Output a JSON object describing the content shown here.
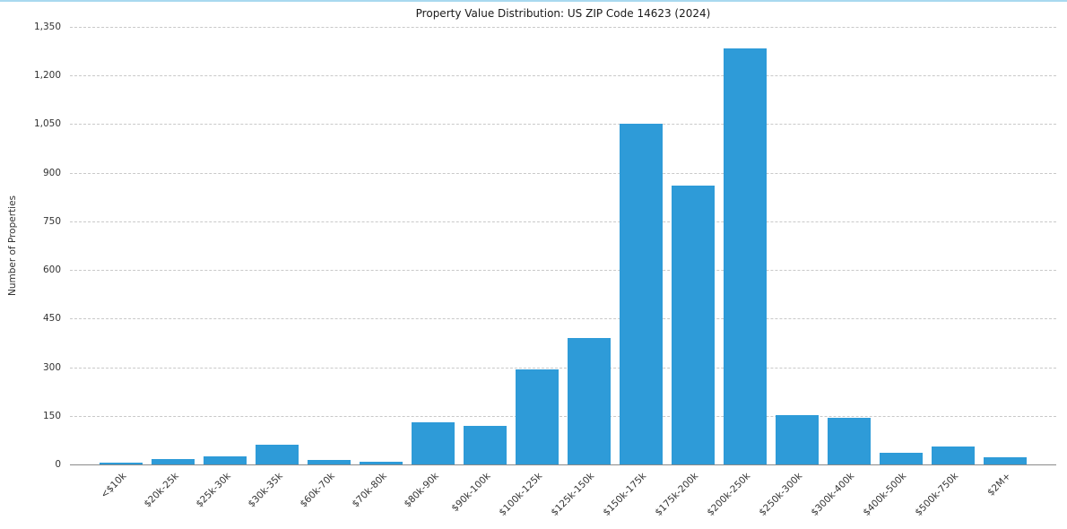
{
  "chart_data": {
    "type": "bar",
    "title": "Property Value Distribution: US ZIP Code 14623 (2024)",
    "xlabel": "",
    "ylabel": "Number of Properties",
    "categories": [
      "<$10k",
      "$20k-25k",
      "$25k-30k",
      "$30k-35k",
      "$60k-70k",
      "$70k-80k",
      "$80k-90k",
      "$90k-100k",
      "$100k-125k",
      "$125k-150k",
      "$150k-175k",
      "$175k-200k",
      "$200k-250k",
      "$250k-300k",
      "$300k-400k",
      "$400k-500k",
      "$500k-750k",
      "$2M+"
    ],
    "values": [
      5,
      18,
      25,
      60,
      15,
      8,
      130,
      120,
      293,
      390,
      1050,
      860,
      1285,
      152,
      144,
      35,
      55,
      22
    ],
    "ylim": [
      0,
      1350
    ],
    "yticks": [
      0,
      150,
      300,
      450,
      600,
      750,
      900,
      1050,
      1200,
      1350
    ],
    "ytick_labels": [
      "0",
      "150",
      "300",
      "450",
      "600",
      "750",
      "900",
      "1,050",
      "1,200",
      "1,350"
    ],
    "grid": "horizontal-dashed",
    "legend": "none",
    "bar_color": "#2e9bd8",
    "grid_color": "#c9c9c9",
    "axis_color": "#8a8a8a",
    "text_color": "#333333",
    "top_border_color": "#a9d9ef"
  }
}
